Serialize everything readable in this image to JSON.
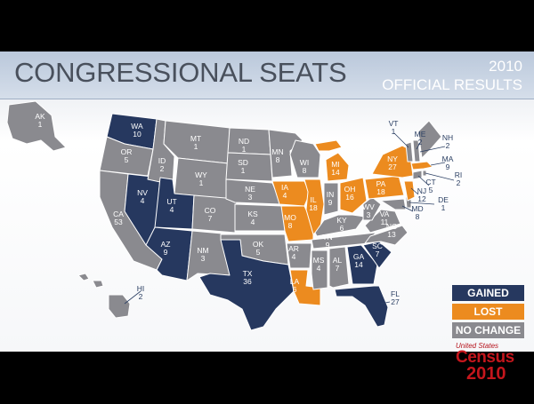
{
  "header": {
    "title": "CONGRESSIONAL SEATS",
    "year": "2010",
    "subtitle": "OFFICIAL RESULTS"
  },
  "colors": {
    "gained": "#26385f",
    "lost": "#ec8b1f",
    "no_change": "#8a8a8f",
    "land": "#77787d"
  },
  "legend": {
    "gained": "GAINED",
    "lost": "LOST",
    "no_change": "NO CHANGE"
  },
  "logo": {
    "top": "United States",
    "word": "Census",
    "year": "2010"
  },
  "states": {
    "AK": {
      "abbr": "AK",
      "seats": "1",
      "status": "no_change"
    },
    "HI": {
      "abbr": "HI",
      "seats": "2",
      "status": "no_change"
    },
    "WA": {
      "abbr": "WA",
      "seats": "10",
      "status": "gained"
    },
    "OR": {
      "abbr": "OR",
      "seats": "5",
      "status": "no_change"
    },
    "CA": {
      "abbr": "CA",
      "seats": "53",
      "status": "no_change"
    },
    "NV": {
      "abbr": "NV",
      "seats": "4",
      "status": "gained"
    },
    "ID": {
      "abbr": "ID",
      "seats": "2",
      "status": "no_change"
    },
    "MT": {
      "abbr": "MT",
      "seats": "1",
      "status": "no_change"
    },
    "WY": {
      "abbr": "WY",
      "seats": "1",
      "status": "no_change"
    },
    "UT": {
      "abbr": "UT",
      "seats": "4",
      "status": "gained"
    },
    "AZ": {
      "abbr": "AZ",
      "seats": "9",
      "status": "gained"
    },
    "CO": {
      "abbr": "CO",
      "seats": "7",
      "status": "no_change"
    },
    "NM": {
      "abbr": "NM",
      "seats": "3",
      "status": "no_change"
    },
    "ND": {
      "abbr": "ND",
      "seats": "1",
      "status": "no_change"
    },
    "SD": {
      "abbr": "SD",
      "seats": "1",
      "status": "no_change"
    },
    "NE": {
      "abbr": "NE",
      "seats": "3",
      "status": "no_change"
    },
    "KS": {
      "abbr": "KS",
      "seats": "4",
      "status": "no_change"
    },
    "OK": {
      "abbr": "OK",
      "seats": "5",
      "status": "no_change"
    },
    "TX": {
      "abbr": "TX",
      "seats": "36",
      "status": "gained"
    },
    "MN": {
      "abbr": "MN",
      "seats": "8",
      "status": "no_change"
    },
    "IA": {
      "abbr": "IA",
      "seats": "4",
      "status": "lost"
    },
    "MO": {
      "abbr": "MO",
      "seats": "8",
      "status": "lost"
    },
    "AR": {
      "abbr": "AR",
      "seats": "4",
      "status": "no_change"
    },
    "LA": {
      "abbr": "LA",
      "seats": "6",
      "status": "lost"
    },
    "WI": {
      "abbr": "WI",
      "seats": "8",
      "status": "no_change"
    },
    "IL": {
      "abbr": "IL",
      "seats": "18",
      "status": "lost"
    },
    "MI": {
      "abbr": "MI",
      "seats": "14",
      "status": "lost"
    },
    "IN": {
      "abbr": "IN",
      "seats": "9",
      "status": "no_change"
    },
    "OH": {
      "abbr": "OH",
      "seats": "16",
      "status": "lost"
    },
    "KY": {
      "abbr": "KY",
      "seats": "6",
      "status": "no_change"
    },
    "TN": {
      "abbr": "TN",
      "seats": "9",
      "status": "no_change"
    },
    "MS": {
      "abbr": "MS",
      "seats": "4",
      "status": "no_change"
    },
    "AL": {
      "abbr": "AL",
      "seats": "7",
      "status": "no_change"
    },
    "GA": {
      "abbr": "GA",
      "seats": "14",
      "status": "gained"
    },
    "FL": {
      "abbr": "FL",
      "seats": "27",
      "status": "gained"
    },
    "SC": {
      "abbr": "SC",
      "seats": "7",
      "status": "gained"
    },
    "NC": {
      "abbr": "NC",
      "seats": "13",
      "status": "no_change"
    },
    "VA": {
      "abbr": "VA",
      "seats": "11",
      "status": "no_change"
    },
    "WV": {
      "abbr": "WV",
      "seats": "3",
      "status": "no_change"
    },
    "PA": {
      "abbr": "PA",
      "seats": "18",
      "status": "lost"
    },
    "NY": {
      "abbr": "NY",
      "seats": "27",
      "status": "lost"
    },
    "VT": {
      "abbr": "VT",
      "seats": "1",
      "status": "no_change"
    },
    "NH": {
      "abbr": "NH",
      "seats": "2",
      "status": "no_change"
    },
    "ME": {
      "abbr": "ME",
      "seats": "2",
      "status": "no_change"
    },
    "MA": {
      "abbr": "MA",
      "seats": "9",
      "status": "lost"
    },
    "RI": {
      "abbr": "RI",
      "seats": "2",
      "status": "no_change"
    },
    "CT": {
      "abbr": "CT",
      "seats": "5",
      "status": "no_change"
    },
    "NJ": {
      "abbr": "NJ",
      "seats": "12",
      "status": "lost"
    },
    "DE": {
      "abbr": "DE",
      "seats": "1",
      "status": "no_change"
    },
    "MD": {
      "abbr": "MD",
      "seats": "8",
      "status": "no_change"
    }
  }
}
